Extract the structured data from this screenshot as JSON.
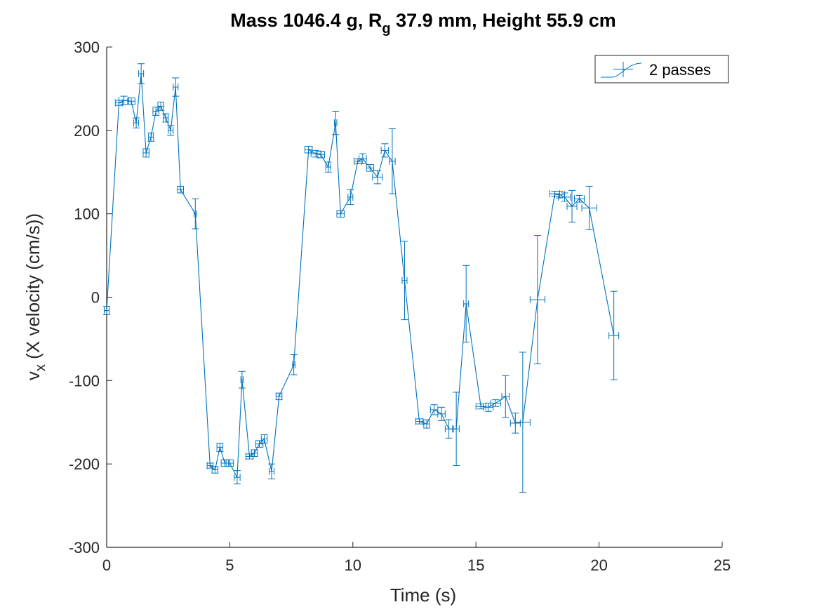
{
  "chart_data": {
    "type": "line",
    "subtype": "errorbar",
    "title": {
      "prefix": "Mass 1046.4 g, R",
      "subscript": "g",
      "suffix": " 37.9 mm,  Height 55.9 cm"
    },
    "xlabel": "Time (s)",
    "ylabel": {
      "base": "v",
      "subscript": "x",
      "rest": " (X velocity (cm/s))"
    },
    "xlim": [
      0,
      25
    ],
    "ylim": [
      -300,
      300
    ],
    "xticks": [
      0,
      5,
      10,
      15,
      20,
      25
    ],
    "yticks": [
      -300,
      -200,
      -100,
      0,
      100,
      200,
      300
    ],
    "grid": false,
    "legend": {
      "position": "top-right",
      "entries": [
        "2 passes"
      ]
    },
    "color": "#0072BD",
    "series": [
      {
        "name": "2 passes",
        "points": [
          {
            "x": 0.0,
            "y": -16,
            "xerr": 0.1,
            "yerr": 5
          },
          {
            "x": 0.5,
            "y": 233,
            "xerr": 0.15,
            "yerr": 3
          },
          {
            "x": 0.7,
            "y": 236,
            "xerr": 0.2,
            "yerr": 5
          },
          {
            "x": 1.0,
            "y": 235,
            "xerr": 0.15,
            "yerr": 4
          },
          {
            "x": 1.2,
            "y": 209,
            "xerr": 0.1,
            "yerr": 6
          },
          {
            "x": 1.4,
            "y": 268,
            "xerr": 0.1,
            "yerr": 12
          },
          {
            "x": 1.6,
            "y": 173,
            "xerr": 0.12,
            "yerr": 5
          },
          {
            "x": 1.8,
            "y": 192,
            "xerr": 0.1,
            "yerr": 5
          },
          {
            "x": 2.0,
            "y": 223,
            "xerr": 0.12,
            "yerr": 5
          },
          {
            "x": 2.2,
            "y": 229,
            "xerr": 0.12,
            "yerr": 5
          },
          {
            "x": 2.4,
            "y": 215,
            "xerr": 0.1,
            "yerr": 5
          },
          {
            "x": 2.6,
            "y": 200,
            "xerr": 0.1,
            "yerr": 6
          },
          {
            "x": 2.8,
            "y": 252,
            "xerr": 0.1,
            "yerr": 11
          },
          {
            "x": 3.0,
            "y": 129,
            "xerr": 0.12,
            "yerr": 4
          },
          {
            "x": 3.6,
            "y": 100,
            "xerr": 0.05,
            "yerr": 18
          },
          {
            "x": 4.2,
            "y": -202,
            "xerr": 0.12,
            "yerr": 3
          },
          {
            "x": 4.4,
            "y": -207,
            "xerr": 0.12,
            "yerr": 4
          },
          {
            "x": 4.6,
            "y": -180,
            "xerr": 0.12,
            "yerr": 5
          },
          {
            "x": 4.8,
            "y": -199,
            "xerr": 0.15,
            "yerr": 4
          },
          {
            "x": 5.0,
            "y": -199,
            "xerr": 0.15,
            "yerr": 4
          },
          {
            "x": 5.3,
            "y": -216,
            "xerr": 0.12,
            "yerr": 8
          },
          {
            "x": 5.5,
            "y": -99,
            "xerr": 0.05,
            "yerr": 10
          },
          {
            "x": 5.8,
            "y": -191,
            "xerr": 0.15,
            "yerr": 3
          },
          {
            "x": 6.0,
            "y": -187,
            "xerr": 0.12,
            "yerr": 4
          },
          {
            "x": 6.2,
            "y": -176,
            "xerr": 0.15,
            "yerr": 4
          },
          {
            "x": 6.4,
            "y": -170,
            "xerr": 0.12,
            "yerr": 5
          },
          {
            "x": 6.7,
            "y": -209,
            "xerr": 0.1,
            "yerr": 9
          },
          {
            "x": 7.0,
            "y": -119,
            "xerr": 0.12,
            "yerr": 4
          },
          {
            "x": 7.6,
            "y": -81,
            "xerr": 0.05,
            "yerr": 12
          },
          {
            "x": 8.2,
            "y": 177,
            "xerr": 0.15,
            "yerr": 4
          },
          {
            "x": 8.5,
            "y": 172,
            "xerr": 0.2,
            "yerr": 4
          },
          {
            "x": 8.7,
            "y": 171,
            "xerr": 0.15,
            "yerr": 4
          },
          {
            "x": 9.0,
            "y": 156,
            "xerr": 0.1,
            "yerr": 6
          },
          {
            "x": 9.3,
            "y": 209,
            "xerr": 0.05,
            "yerr": 14
          },
          {
            "x": 9.5,
            "y": 100,
            "xerr": 0.15,
            "yerr": 4
          },
          {
            "x": 9.9,
            "y": 120,
            "xerr": 0.1,
            "yerr": 9
          },
          {
            "x": 10.2,
            "y": 163,
            "xerr": 0.15,
            "yerr": 3
          },
          {
            "x": 10.4,
            "y": 166,
            "xerr": 0.15,
            "yerr": 6
          },
          {
            "x": 10.7,
            "y": 155,
            "xerr": 0.15,
            "yerr": 4
          },
          {
            "x": 11.0,
            "y": 144,
            "xerr": 0.2,
            "yerr": 8
          },
          {
            "x": 11.3,
            "y": 176,
            "xerr": 0.15,
            "yerr": 8
          },
          {
            "x": 11.6,
            "y": 163,
            "xerr": 0.12,
            "yerr": 39
          },
          {
            "x": 12.1,
            "y": 20,
            "xerr": 0.1,
            "yerr": 47
          },
          {
            "x": 12.7,
            "y": -149,
            "xerr": 0.15,
            "yerr": 3
          },
          {
            "x": 13.0,
            "y": -152,
            "xerr": 0.12,
            "yerr": 5
          },
          {
            "x": 13.3,
            "y": -135,
            "xerr": 0.15,
            "yerr": 6
          },
          {
            "x": 13.6,
            "y": -140,
            "xerr": 0.15,
            "yerr": 8
          },
          {
            "x": 13.9,
            "y": -158,
            "xerr": 0.15,
            "yerr": 11
          },
          {
            "x": 14.2,
            "y": -158,
            "xerr": 0.12,
            "yerr": 44
          },
          {
            "x": 14.6,
            "y": -8,
            "xerr": 0.1,
            "yerr": 46
          },
          {
            "x": 15.2,
            "y": -131,
            "xerr": 0.2,
            "yerr": 3
          },
          {
            "x": 15.5,
            "y": -132,
            "xerr": 0.2,
            "yerr": 5
          },
          {
            "x": 15.8,
            "y": -127,
            "xerr": 0.2,
            "yerr": 4
          },
          {
            "x": 16.2,
            "y": -119,
            "xerr": 0.15,
            "yerr": 25
          },
          {
            "x": 16.6,
            "y": -151,
            "xerr": 0.2,
            "yerr": 12
          },
          {
            "x": 16.9,
            "y": -150,
            "xerr": 0.3,
            "yerr": 84
          },
          {
            "x": 17.5,
            "y": -3,
            "xerr": 0.3,
            "yerr": 77
          },
          {
            "x": 18.2,
            "y": 124,
            "xerr": 0.2,
            "yerr": 3
          },
          {
            "x": 18.4,
            "y": 123,
            "xerr": 0.2,
            "yerr": 4
          },
          {
            "x": 18.6,
            "y": 120,
            "xerr": 0.25,
            "yerr": 5
          },
          {
            "x": 18.9,
            "y": 109,
            "xerr": 0.2,
            "yerr": 19
          },
          {
            "x": 19.2,
            "y": 118,
            "xerr": 0.2,
            "yerr": 4
          },
          {
            "x": 19.6,
            "y": 107,
            "xerr": 0.3,
            "yerr": 26
          },
          {
            "x": 20.6,
            "y": -46,
            "xerr": 0.2,
            "yerr": 53
          }
        ]
      }
    ]
  }
}
